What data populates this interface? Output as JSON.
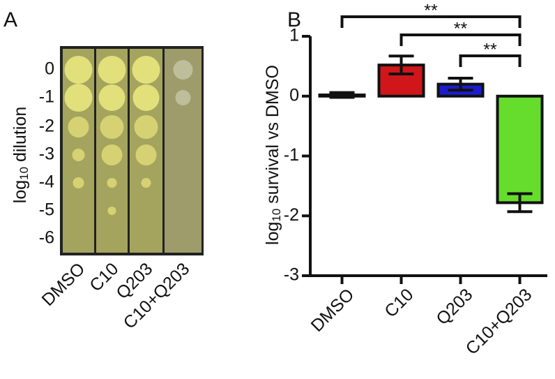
{
  "panel_a": {
    "label": "A",
    "ylabel": {
      "base": "log",
      "sub": "10",
      "rest": " dilution"
    },
    "dilutions": [
      "0",
      "-1",
      "-2",
      "-3",
      "-4",
      "-5",
      "-6"
    ],
    "columns": [
      "DMSO",
      "C10",
      "Q203",
      "C10+Q203"
    ]
  },
  "chart_data": {
    "type": "bar",
    "panel": "B",
    "ylabel": {
      "base": "log",
      "sub": "10",
      "rest": " survival vs DMSO"
    },
    "categories": [
      "DMSO",
      "C10",
      "Q203",
      "C10+Q203"
    ],
    "values": [
      0.02,
      0.52,
      0.2,
      -1.78
    ],
    "errors": [
      0.04,
      0.15,
      0.1,
      0.15
    ],
    "colors": [
      "#161616",
      "#d0161a",
      "#1c1ccc",
      "#66dd2c"
    ],
    "ylim": [
      -3,
      1
    ],
    "yticks": [
      -3,
      -2,
      -1,
      0,
      1
    ],
    "annotations": [
      {
        "text": "**",
        "start": "DMSO",
        "end": "C10+Q203"
      },
      {
        "text": "**",
        "start": "C10",
        "end": "C10+Q203"
      },
      {
        "text": "**",
        "start": "Q203",
        "end": "C10+Q203"
      }
    ]
  }
}
